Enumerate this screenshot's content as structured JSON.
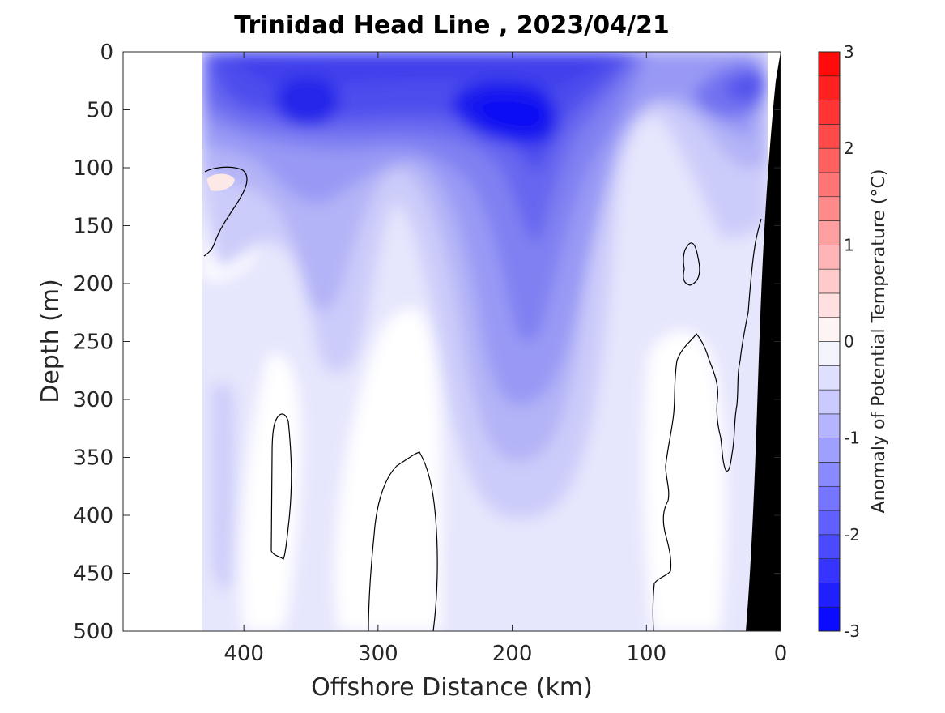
{
  "chart_data": {
    "type": "heatmap",
    "subtype": "filled-contour section",
    "title": "Trinidad Head Line , 2023/04/21",
    "xlabel": "Offshore Distance (km)",
    "ylabel": "Depth (m)",
    "xlim": [
      490,
      0
    ],
    "ylim": [
      0,
      500
    ],
    "x_reversed": true,
    "y_reversed": true,
    "xticks": [
      400,
      300,
      200,
      100,
      0
    ],
    "yticks": [
      0,
      50,
      100,
      150,
      200,
      250,
      300,
      350,
      400,
      450,
      500
    ],
    "colorbar": {
      "label": "Anomaly of Potential Temperature (°C)",
      "range": [
        -3,
        3
      ],
      "ticks": [
        3,
        2,
        1,
        0,
        -1,
        -2,
        -3
      ],
      "levels": [
        -3,
        -2.75,
        -2.5,
        -2.25,
        -2,
        -1.75,
        -1.5,
        -1.25,
        -1,
        -0.75,
        -0.5,
        -0.25,
        0,
        0.25,
        0.5,
        0.75,
        1,
        1.25,
        1.5,
        1.75,
        2,
        2.25,
        2.5,
        2.75,
        3
      ],
      "colormap": "blue-white-red",
      "position": "right"
    },
    "data_extent_km": [
      0,
      432
    ],
    "zero_contour": "black line",
    "bathymetry_fill": "#000000",
    "features": [
      {
        "description": "strongest cold anomaly core",
        "x_km": 200,
        "depth_m": 60,
        "value": -2.5
      },
      {
        "description": "cold anomaly core",
        "x_km": 350,
        "depth_m": 50,
        "value": -2.25
      },
      {
        "description": "cold tongue extending downward",
        "x_km": 180,
        "depth_m": 250,
        "value": -1.25
      },
      {
        "description": "nearshore cold patch",
        "x_km": 40,
        "depth_m": 40,
        "value": -1.25
      },
      {
        "description": "warm anomaly patch",
        "x_km": 415,
        "depth_m": 110,
        "value": 0.25
      }
    ],
    "grid": false
  },
  "colors": {
    "cold_max": "#0000ff",
    "neutral": "#ffffff",
    "warm_max": "#ff0000",
    "bathymetry": "#000000"
  }
}
